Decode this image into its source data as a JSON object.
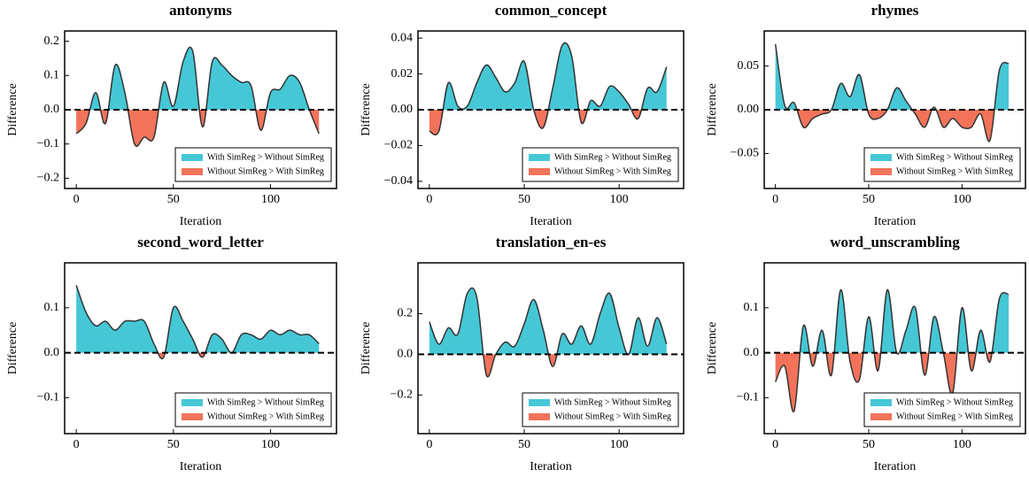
{
  "chart_data": [
    {
      "type": "area",
      "title": "antonyms",
      "xlabel": "Iteration",
      "ylabel": "Difference",
      "x": [
        0,
        5,
        10,
        15,
        20,
        25,
        30,
        35,
        40,
        45,
        50,
        55,
        60,
        65,
        70,
        75,
        80,
        85,
        90,
        95,
        100,
        105,
        110,
        115,
        120,
        125
      ],
      "values": [
        -0.07,
        -0.04,
        0.05,
        -0.04,
        0.13,
        0.05,
        -0.1,
        -0.08,
        -0.08,
        0.08,
        0.01,
        0.14,
        0.17,
        -0.05,
        0.14,
        0.13,
        0.1,
        0.08,
        0.07,
        -0.06,
        0.05,
        0.06,
        0.1,
        0.08,
        0.0,
        -0.07
      ],
      "xlim": [
        -6,
        134
      ],
      "ylim": [
        -0.23,
        0.23
      ],
      "xticks": [
        0,
        50,
        100
      ],
      "yticks": [
        {
          "value": -0.2,
          "label": "−0.2"
        },
        {
          "value": -0.1,
          "label": "−0.1"
        },
        {
          "value": 0,
          "label": "0.0"
        },
        {
          "value": 0.1,
          "label": "0.1"
        },
        {
          "value": 0.2,
          "label": "0.2"
        }
      ],
      "legend": [
        {
          "name": "With SimReg > Without SimReg",
          "color": "#45c7d6"
        },
        {
          "name": "Without SimReg > With SimReg",
          "color": "#f2735a"
        }
      ],
      "legend_loc": "lower right",
      "zero_line": true
    },
    {
      "type": "area",
      "title": "common_concept",
      "xlabel": "Iteration",
      "ylabel": "Difference",
      "x": [
        0,
        5,
        10,
        15,
        20,
        25,
        30,
        35,
        40,
        45,
        50,
        55,
        60,
        65,
        70,
        75,
        80,
        85,
        90,
        95,
        100,
        105,
        110,
        115,
        120,
        125
      ],
      "values": [
        -0.012,
        -0.012,
        0.015,
        0.002,
        0.002,
        0.015,
        0.025,
        0.018,
        0.01,
        0.015,
        0.027,
        0.0,
        -0.01,
        0.012,
        0.036,
        0.03,
        -0.007,
        0.005,
        0.002,
        0.013,
        0.01,
        0.003,
        -0.005,
        0.012,
        0.01,
        0.024
      ],
      "xlim": [
        -6,
        134
      ],
      "ylim": [
        -0.044,
        0.044
      ],
      "xticks": [
        0,
        50,
        100
      ],
      "yticks": [
        {
          "value": -0.04,
          "label": "−0.04"
        },
        {
          "value": -0.02,
          "label": "−0.02"
        },
        {
          "value": 0,
          "label": "0.00"
        },
        {
          "value": 0.02,
          "label": "0.02"
        },
        {
          "value": 0.04,
          "label": "0.04"
        }
      ],
      "legend": [
        {
          "name": "With SimReg > Without SimReg",
          "color": "#45c7d6"
        },
        {
          "name": "Without SimReg > With SimReg",
          "color": "#f2735a"
        }
      ],
      "legend_loc": "lower right",
      "zero_line": true
    },
    {
      "type": "area",
      "title": "rhymes",
      "xlabel": "Iteration",
      "ylabel": "Difference",
      "x": [
        0,
        5,
        10,
        15,
        20,
        25,
        30,
        35,
        40,
        45,
        50,
        55,
        60,
        65,
        70,
        75,
        80,
        85,
        90,
        95,
        100,
        105,
        110,
        115,
        120,
        125
      ],
      "values": [
        0.075,
        0.005,
        0.008,
        -0.02,
        -0.01,
        -0.005,
        0.0,
        0.03,
        0.015,
        0.04,
        -0.005,
        -0.01,
        0.0,
        0.025,
        0.01,
        -0.005,
        -0.02,
        0.003,
        -0.02,
        -0.01,
        -0.02,
        -0.02,
        -0.005,
        -0.035,
        0.045,
        0.053
      ],
      "xlim": [
        -6,
        134
      ],
      "ylim": [
        -0.09,
        0.09
      ],
      "xticks": [
        0,
        50,
        100
      ],
      "yticks": [
        {
          "value": -0.05,
          "label": "−0.05"
        },
        {
          "value": 0,
          "label": "0.00"
        },
        {
          "value": 0.05,
          "label": "0.05"
        }
      ],
      "legend": [
        {
          "name": "With SimReg > Without SimReg",
          "color": "#45c7d6"
        },
        {
          "name": "Without SimReg > With SimReg",
          "color": "#f2735a"
        }
      ],
      "legend_loc": "lower right",
      "zero_line": true
    },
    {
      "type": "area",
      "title": "second_word_letter",
      "xlabel": "Iteration",
      "ylabel": "Difference",
      "x": [
        0,
        5,
        10,
        15,
        20,
        25,
        30,
        35,
        40,
        45,
        50,
        55,
        60,
        65,
        70,
        75,
        80,
        85,
        90,
        95,
        100,
        105,
        110,
        115,
        120,
        125
      ],
      "values": [
        0.15,
        0.09,
        0.06,
        0.07,
        0.05,
        0.07,
        0.07,
        0.07,
        0.02,
        -0.01,
        0.1,
        0.07,
        0.03,
        -0.01,
        0.04,
        0.03,
        0.0,
        0.04,
        0.04,
        0.03,
        0.05,
        0.04,
        0.05,
        0.04,
        0.04,
        0.02
      ],
      "xlim": [
        -6,
        134
      ],
      "ylim": [
        -0.18,
        0.2
      ],
      "xticks": [
        0,
        50,
        100
      ],
      "yticks": [
        {
          "value": -0.1,
          "label": "−0.1"
        },
        {
          "value": 0,
          "label": "0.0"
        },
        {
          "value": 0.1,
          "label": "0.1"
        }
      ],
      "legend": [
        {
          "name": "With SimReg > Without SimReg",
          "color": "#45c7d6"
        },
        {
          "name": "Without SimReg > With SimReg",
          "color": "#f2735a"
        }
      ],
      "legend_loc": "lower right",
      "zero_line": true
    },
    {
      "type": "area",
      "title": "translation_en-es",
      "xlabel": "Iteration",
      "ylabel": "Difference",
      "x": [
        0,
        5,
        10,
        15,
        20,
        25,
        30,
        35,
        40,
        45,
        50,
        55,
        60,
        65,
        70,
        75,
        80,
        85,
        90,
        95,
        100,
        105,
        110,
        115,
        120,
        125
      ],
      "values": [
        0.16,
        0.05,
        0.13,
        0.1,
        0.3,
        0.28,
        -0.1,
        0.0,
        0.06,
        0.04,
        0.15,
        0.27,
        0.12,
        -0.06,
        0.1,
        0.05,
        0.14,
        0.05,
        0.2,
        0.3,
        0.13,
        0.0,
        0.18,
        0.04,
        0.18,
        0.05
      ],
      "xlim": [
        -6,
        134
      ],
      "ylim": [
        -0.39,
        0.45
      ],
      "xticks": [
        0,
        50,
        100
      ],
      "yticks": [
        {
          "value": -0.2,
          "label": "−0.2"
        },
        {
          "value": 0,
          "label": "0.0"
        },
        {
          "value": 0.2,
          "label": "0.2"
        }
      ],
      "legend": [
        {
          "name": "With SimReg > Without SimReg",
          "color": "#45c7d6"
        },
        {
          "name": "Without SimReg > With SimReg",
          "color": "#f2735a"
        }
      ],
      "legend_loc": "lower right",
      "zero_line": true
    },
    {
      "type": "area",
      "title": "word_unscrambling",
      "xlabel": "Iteration",
      "ylabel": "Difference",
      "x": [
        0,
        5,
        10,
        15,
        20,
        25,
        30,
        35,
        40,
        45,
        50,
        55,
        60,
        65,
        70,
        75,
        80,
        85,
        90,
        95,
        100,
        105,
        110,
        115,
        120,
        125
      ],
      "values": [
        -0.065,
        -0.03,
        -0.13,
        0.06,
        -0.03,
        0.05,
        -0.05,
        0.14,
        -0.02,
        -0.06,
        0.08,
        -0.04,
        0.14,
        0.0,
        0.05,
        0.1,
        -0.05,
        0.08,
        0.0,
        -0.09,
        0.1,
        -0.04,
        0.05,
        -0.02,
        0.12,
        0.13
      ],
      "xlim": [
        -6,
        134
      ],
      "ylim": [
        -0.18,
        0.2
      ],
      "xticks": [
        0,
        50,
        100
      ],
      "yticks": [
        {
          "value": -0.1,
          "label": "−0.1"
        },
        {
          "value": 0,
          "label": "0.0"
        },
        {
          "value": 0.1,
          "label": "0.1"
        }
      ],
      "legend": [
        {
          "name": "With SimReg > Without SimReg",
          "color": "#45c7d6"
        },
        {
          "name": "Without SimReg > With SimReg",
          "color": "#f2735a"
        }
      ],
      "legend_loc": "lower right",
      "zero_line": true
    }
  ]
}
